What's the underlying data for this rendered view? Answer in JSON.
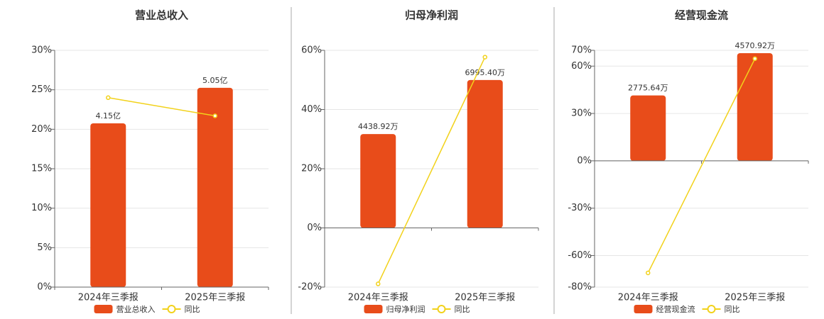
{
  "chart_data": [
    {
      "type": "combo",
      "title": "营业总收入",
      "categories": [
        "2024年三季报",
        "2025年三季报"
      ],
      "series": [
        {
          "name": "营业总收入",
          "type": "bar",
          "color": "#e84c1a",
          "axis": "y2",
          "values": [
            4.15,
            5.05
          ],
          "value_labels": [
            "4.15亿",
            "5.05亿"
          ]
        },
        {
          "name": "同比",
          "type": "line",
          "color": "#f2d21b",
          "values": [
            24.0,
            21.7
          ]
        }
      ],
      "ylim": [
        0,
        30
      ],
      "yticks": [
        {
          "value": 0,
          "label": "0%"
        },
        {
          "value": 5,
          "label": "5%"
        },
        {
          "value": 10,
          "label": "10%"
        },
        {
          "value": 15,
          "label": "15%"
        },
        {
          "value": 20,
          "label": "20%"
        },
        {
          "value": 25,
          "label": "25%"
        },
        {
          "value": 30,
          "label": "30%"
        }
      ],
      "y2lim": [
        0,
        6
      ],
      "grid": true,
      "legend": "bottom"
    },
    {
      "type": "combo",
      "title": "归母净利润",
      "categories": [
        "2024年三季报",
        "2025年三季报"
      ],
      "series": [
        {
          "name": "归母净利润",
          "type": "bar",
          "color": "#e84c1a",
          "axis": "y2",
          "values": [
            4438.92,
            6995.4
          ],
          "value_labels": [
            "4438.92万",
            "6995.40万"
          ]
        },
        {
          "name": "同比",
          "type": "line",
          "color": "#f2d21b",
          "values": [
            -18.9,
            57.7
          ]
        }
      ],
      "ylim": [
        -20,
        60
      ],
      "yticks": [
        {
          "value": -20,
          "label": "-20%"
        },
        {
          "value": 0,
          "label": "0%"
        },
        {
          "value": 20,
          "label": "20%"
        },
        {
          "value": 40,
          "label": "40%"
        },
        {
          "value": 60,
          "label": "60%"
        }
      ],
      "y2lim": [
        -2800,
        8400
      ],
      "grid": true,
      "legend": "bottom"
    },
    {
      "type": "combo",
      "title": "经营现金流",
      "categories": [
        "2024年三季报",
        "2025年三季报"
      ],
      "series": [
        {
          "name": "经营现金流",
          "type": "bar",
          "color": "#e84c1a",
          "axis": "y2",
          "values": [
            2775.64,
            4570.92
          ],
          "value_labels": [
            "2775.64万",
            "4570.92万"
          ]
        },
        {
          "name": "同比",
          "type": "line",
          "color": "#f2d21b",
          "values": [
            -71.0,
            64.7
          ]
        }
      ],
      "ylim": [
        -80,
        70
      ],
      "yticks": [
        {
          "value": -80,
          "label": "-80%"
        },
        {
          "value": -60,
          "label": "-60%"
        },
        {
          "value": -30,
          "label": "-30%"
        },
        {
          "value": 0,
          "label": "0%"
        },
        {
          "value": 30,
          "label": "30%"
        },
        {
          "value": 60,
          "label": "60%"
        },
        {
          "value": 70,
          "label": "70%"
        }
      ],
      "y2lim": [
        -5360,
        4690
      ],
      "grid": true,
      "legend": "bottom"
    }
  ]
}
